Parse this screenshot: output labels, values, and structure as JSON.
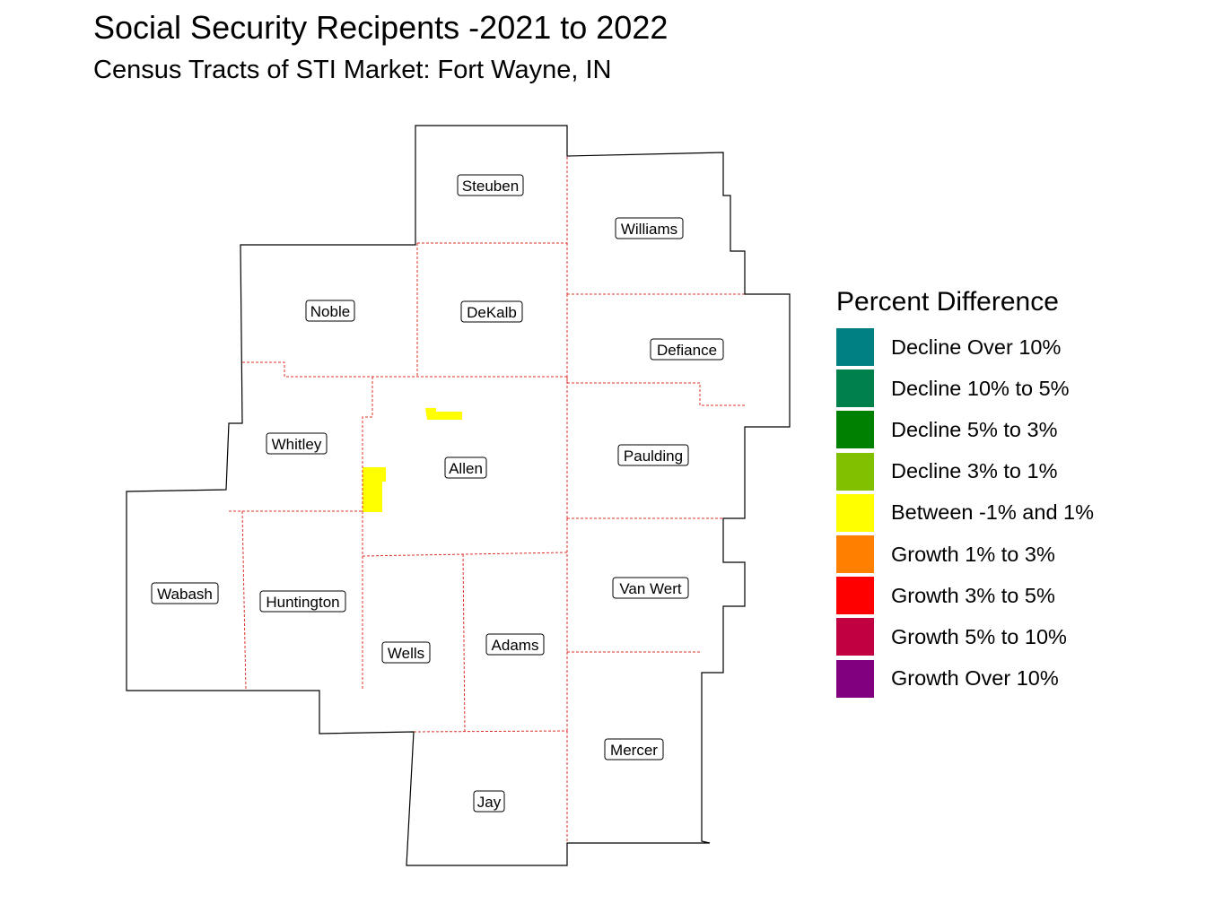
{
  "title": "Social Security Recipents -2021 to 2022",
  "subtitle": "Census Tracts of STI Market: Fort Wayne, IN",
  "legend": {
    "title": "Percent Difference",
    "items": [
      {
        "label": "Decline Over 10%",
        "color": "#008080"
      },
      {
        "label": "Decline 10% to 5%",
        "color": "#00804a"
      },
      {
        "label": "Decline 5% to 3%",
        "color": "#008000"
      },
      {
        "label": "Decline 3% to 1%",
        "color": "#80c000"
      },
      {
        "label": "Between -1% and 1%",
        "color": "#ffff00"
      },
      {
        "label": "Growth 1% to 3%",
        "color": "#ff8000"
      },
      {
        "label": "Growth 3% to 5%",
        "color": "#ff0000"
      },
      {
        "label": "Growth 5% to 10%",
        "color": "#c00040"
      },
      {
        "label": "Growth Over 10%",
        "color": "#800080"
      }
    ]
  },
  "counties": [
    {
      "name": "Steuben",
      "category": "none"
    },
    {
      "name": "Williams",
      "category": "none"
    },
    {
      "name": "Noble",
      "category": "none"
    },
    {
      "name": "DeKalb",
      "category": "none"
    },
    {
      "name": "Defiance",
      "category": "none"
    },
    {
      "name": "Whitley",
      "category": "none"
    },
    {
      "name": "Allen",
      "category": "none"
    },
    {
      "name": "Paulding",
      "category": "none"
    },
    {
      "name": "Wabash",
      "category": "none"
    },
    {
      "name": "Huntington",
      "category": "none"
    },
    {
      "name": "Van Wert",
      "category": "none"
    },
    {
      "name": "Wells",
      "category": "none"
    },
    {
      "name": "Adams",
      "category": "none"
    },
    {
      "name": "Mercer",
      "category": "none"
    },
    {
      "name": "Jay",
      "category": "none"
    }
  ],
  "highlighted_tracts": [
    {
      "county": "Allen",
      "category": "Between -1% and 1%",
      "color": "#ffff00"
    },
    {
      "county": "Allen",
      "category": "Between -1% and 1%",
      "color": "#ffff00"
    }
  ],
  "colors": {
    "county_border_outer": "#000000",
    "county_border_inner": "#e0302a"
  }
}
